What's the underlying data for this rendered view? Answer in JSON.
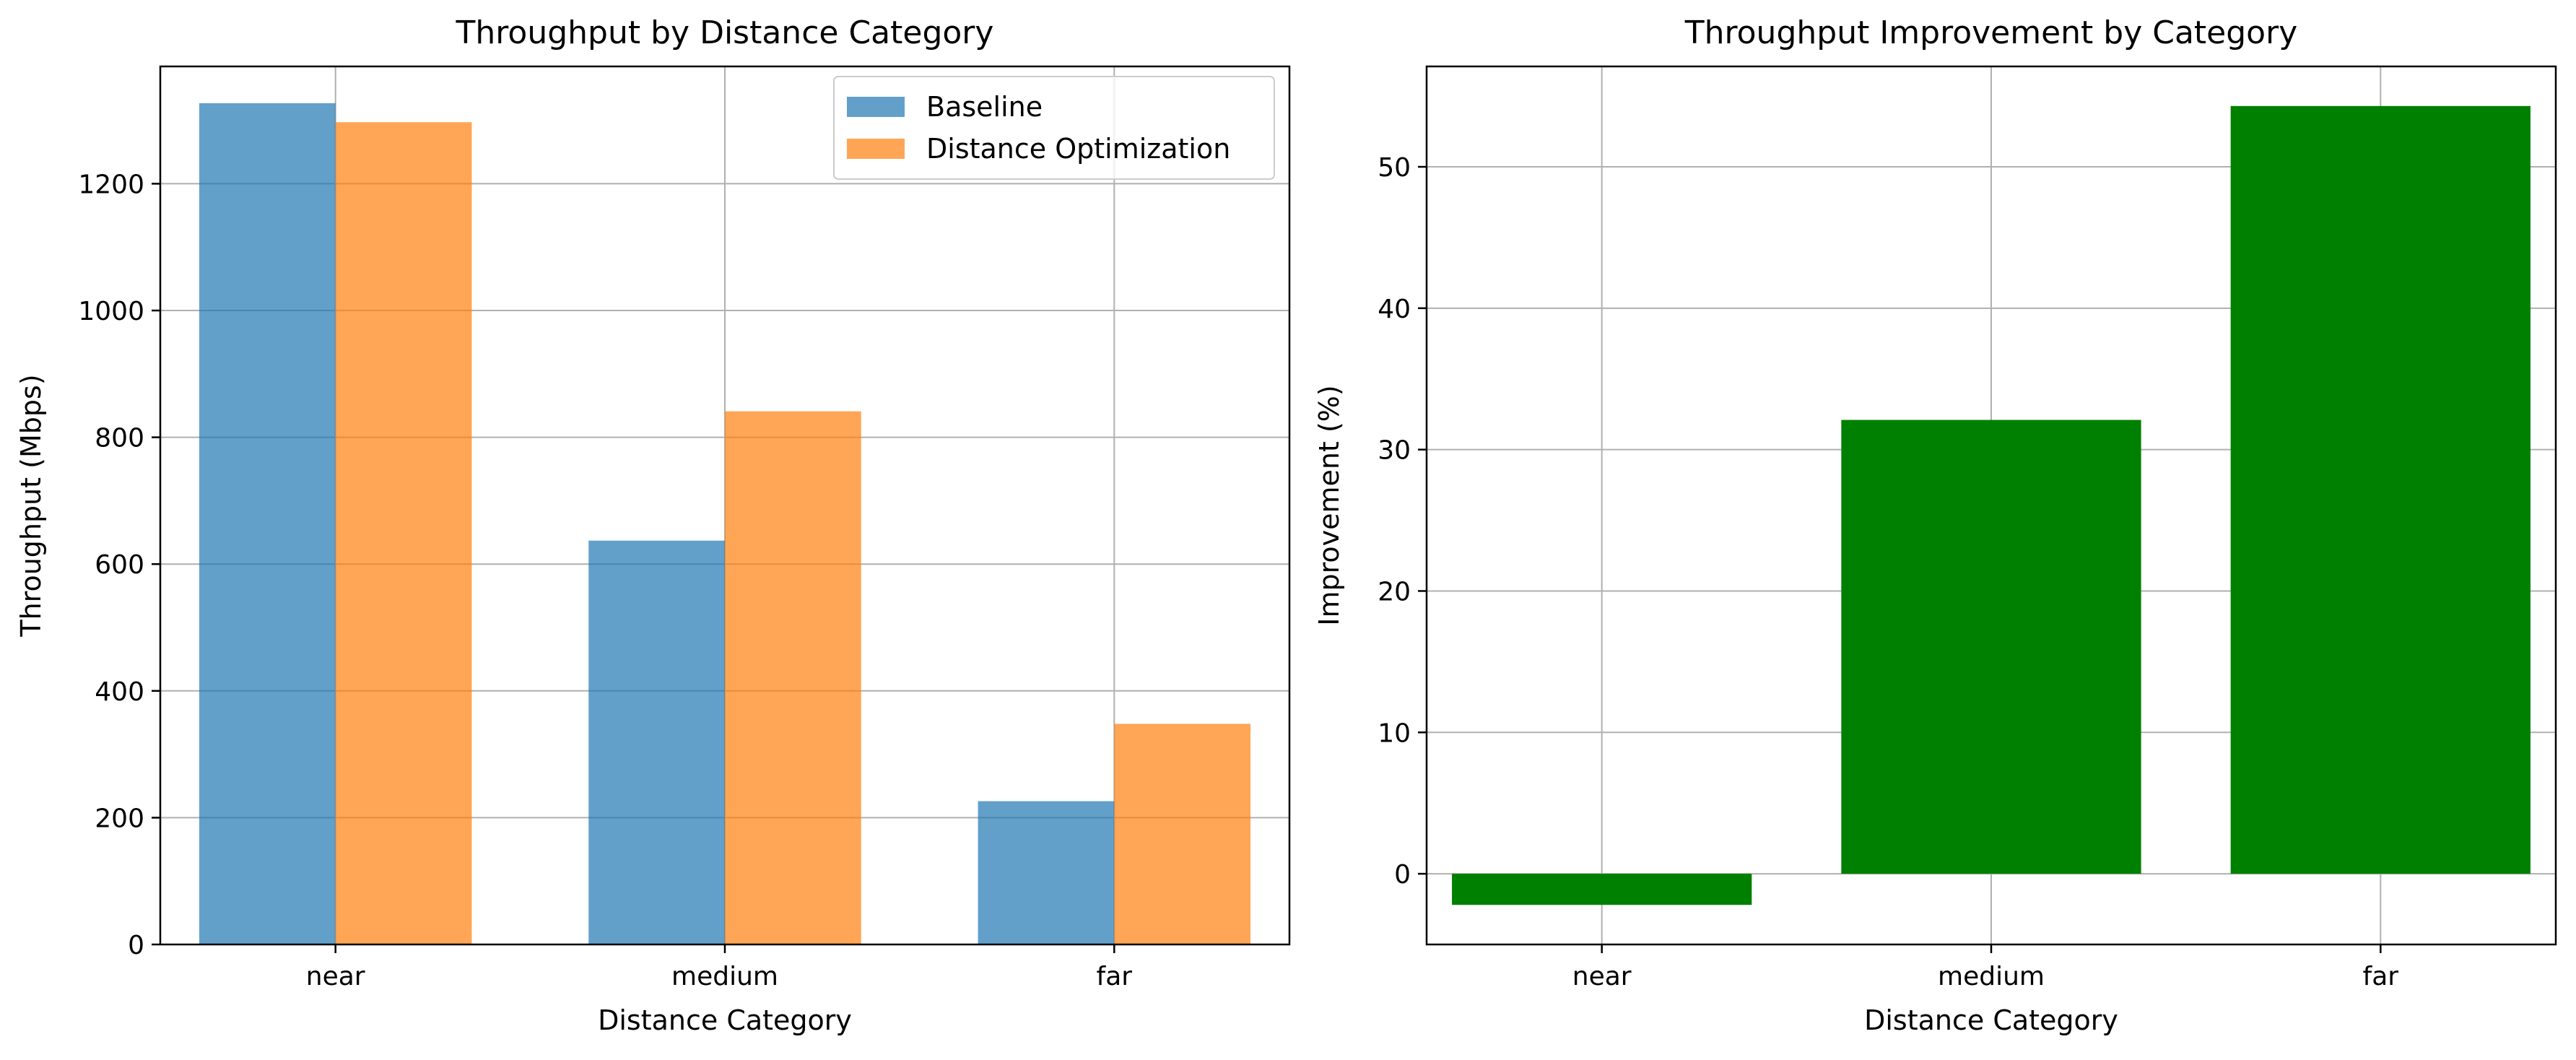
{
  "chart_data": [
    {
      "type": "bar",
      "title": "Throughput by Distance Category",
      "xlabel": "Distance Category",
      "ylabel": "Throughput (Mbps)",
      "categories": [
        "near",
        "medium",
        "far"
      ],
      "series": [
        {
          "name": "Baseline",
          "values": [
            1327,
            637,
            226
          ],
          "color": "#1f77b4"
        },
        {
          "name": "Distance Optimization",
          "values": [
            1297,
            841,
            348
          ],
          "color": "#ff7f0e"
        }
      ],
      "ylim": [
        0,
        1385
      ],
      "yticks": [
        0,
        200,
        400,
        600,
        800,
        1000,
        1200
      ],
      "grid": true,
      "legend": "top-right",
      "bar_opacity": 0.7
    },
    {
      "type": "bar",
      "title": "Throughput Improvement by Category",
      "xlabel": "Distance Category",
      "ylabel": "Improvement (%)",
      "categories": [
        "near",
        "medium",
        "far"
      ],
      "series": [
        {
          "values": [
            -2.2,
            32.1,
            54.3
          ],
          "color": "#008000"
        }
      ],
      "ylim": [
        -5,
        57.1
      ],
      "yticks": [
        0,
        10,
        20,
        30,
        40,
        50
      ],
      "grid": true
    }
  ]
}
